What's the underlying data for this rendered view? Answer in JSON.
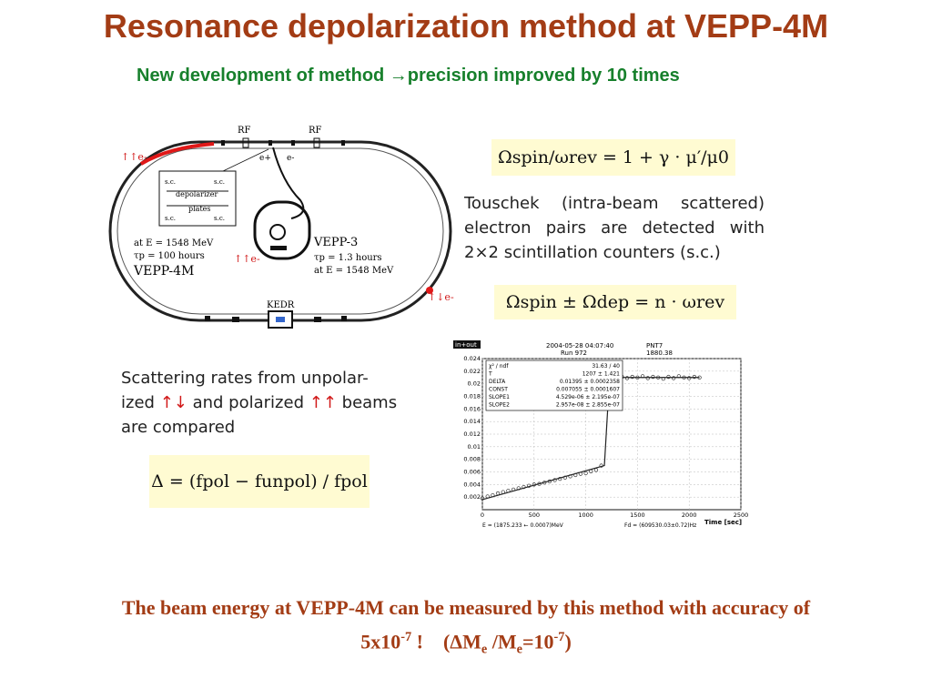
{
  "title": "Resonance depolarization method at VEPP-4M",
  "subtitle": "New development of method →precision improved by 10 times",
  "diagram": {
    "rf_left": "RF",
    "rf_right": "RF",
    "e_plus": "e+",
    "e_minus": "e-",
    "beam_upper": "↑↑e-",
    "beam_mid": "↑↑e-",
    "beam_right": "↑↓e-",
    "sc_labels": [
      "s.c.",
      "s.c.",
      "s.c.",
      "s.c."
    ],
    "depolarizer": "depolarizer",
    "plates": "plates",
    "vepp4m_energy": "at E  = 1548 MeV",
    "vepp4m_tau": "τp = 100 hours",
    "vepp4m_name": "VEPP-4M",
    "vepp3_name": "VEPP-3",
    "vepp3_tau": "τp = 1.3 hours",
    "vepp3_energy": "at E  = 1548 MeV",
    "kedr": "KEDR"
  },
  "formulas": {
    "spin": "Ωspin/ωrev = 1 + γ · μ′/μ0",
    "resonance": "Ωspin ± Ωdep = n · ωrev",
    "delta": "Δ = (fpol − funpol) / fpol"
  },
  "notes": {
    "touschek": "Touschek (intra-beam scattered) electron pairs are detected with 2×2 scintillation counters (s.c.)",
    "scattering_a": "Scattering rates from unpolar-ized",
    "scattering_b": "and polarized",
    "scattering_c": "beams are compared",
    "arrow_unpol": "↑↓",
    "arrow_pol": "↑↑"
  },
  "plot": {
    "tag": "in+out",
    "date": "2004-05-28 04:07:40",
    "run": "Run 972",
    "id": "PNT7",
    "id_value": "1880.38",
    "stats": [
      [
        "χ² / ndf",
        "31.63 / 40"
      ],
      [
        "T",
        "1207 ± 1.421"
      ],
      [
        "DELTA",
        "0.01395 ± 0.0002358"
      ],
      [
        "CONST",
        "0.007055 ± 0.0001607"
      ],
      [
        "SLOPE1",
        "4.529e-06 ± 2.195e-07"
      ],
      [
        "SLOPE2",
        "2.957e-08 ± 2.855e-07"
      ]
    ],
    "footer_left": "E = (1875.233 ← 0.0007)MeV",
    "footer_right": "Fd = (609530.03±0.72)Hz",
    "xlabel": "Time [sec]"
  },
  "chart_data": {
    "type": "scatter",
    "xlabel": "Time [sec]",
    "ylabel": "",
    "xlim": [
      0,
      2500
    ],
    "ylim": [
      0,
      0.024
    ],
    "x_ticks": [
      0,
      500,
      1000,
      1500,
      2000,
      2500
    ],
    "y_ticks": [
      0.002,
      0.004,
      0.006,
      0.008,
      0.01,
      0.012,
      0.014,
      0.016,
      0.018,
      0.02,
      0.022,
      0.024
    ],
    "grid": true,
    "points": [
      [
        0,
        0.0018
      ],
      [
        50,
        0.0021
      ],
      [
        100,
        0.0023
      ],
      [
        150,
        0.0026
      ],
      [
        200,
        0.0028
      ],
      [
        250,
        0.003
      ],
      [
        300,
        0.0032
      ],
      [
        350,
        0.0034
      ],
      [
        400,
        0.0036
      ],
      [
        450,
        0.0038
      ],
      [
        500,
        0.004
      ],
      [
        550,
        0.0041
      ],
      [
        600,
        0.0043
      ],
      [
        650,
        0.0045
      ],
      [
        700,
        0.0047
      ],
      [
        750,
        0.0049
      ],
      [
        800,
        0.0051
      ],
      [
        850,
        0.0053
      ],
      [
        900,
        0.0055
      ],
      [
        950,
        0.0057
      ],
      [
        1000,
        0.0058
      ],
      [
        1050,
        0.0061
      ],
      [
        1100,
        0.0063
      ],
      [
        1150,
        0.007
      ],
      [
        1250,
        0.021
      ],
      [
        1300,
        0.021
      ],
      [
        1350,
        0.0211
      ],
      [
        1400,
        0.0209
      ],
      [
        1450,
        0.0211
      ],
      [
        1500,
        0.021
      ],
      [
        1550,
        0.0212
      ],
      [
        1600,
        0.0209
      ],
      [
        1650,
        0.0211
      ],
      [
        1700,
        0.021
      ],
      [
        1750,
        0.0208
      ],
      [
        1800,
        0.0211
      ],
      [
        1850,
        0.0209
      ],
      [
        1900,
        0.0212
      ],
      [
        1950,
        0.021
      ],
      [
        2000,
        0.0209
      ],
      [
        2050,
        0.0211
      ],
      [
        2100,
        0.021
      ]
    ],
    "fit": [
      [
        0,
        0.0016
      ],
      [
        1180,
        0.007
      ],
      [
        1230,
        0.021
      ],
      [
        2100,
        0.021
      ]
    ]
  },
  "bottom": {
    "text1": "The beam energy at VEPP-4M can be measured by this method with accuracy of",
    "val": "5x10",
    "exp": "-7",
    "excl": " !",
    "ratio_open": "(ΔM",
    "sub_e1": "e",
    "slash": " /M",
    "sub_e2": "e",
    "eq": "=10",
    "exp2": "-7",
    "close": ")"
  }
}
